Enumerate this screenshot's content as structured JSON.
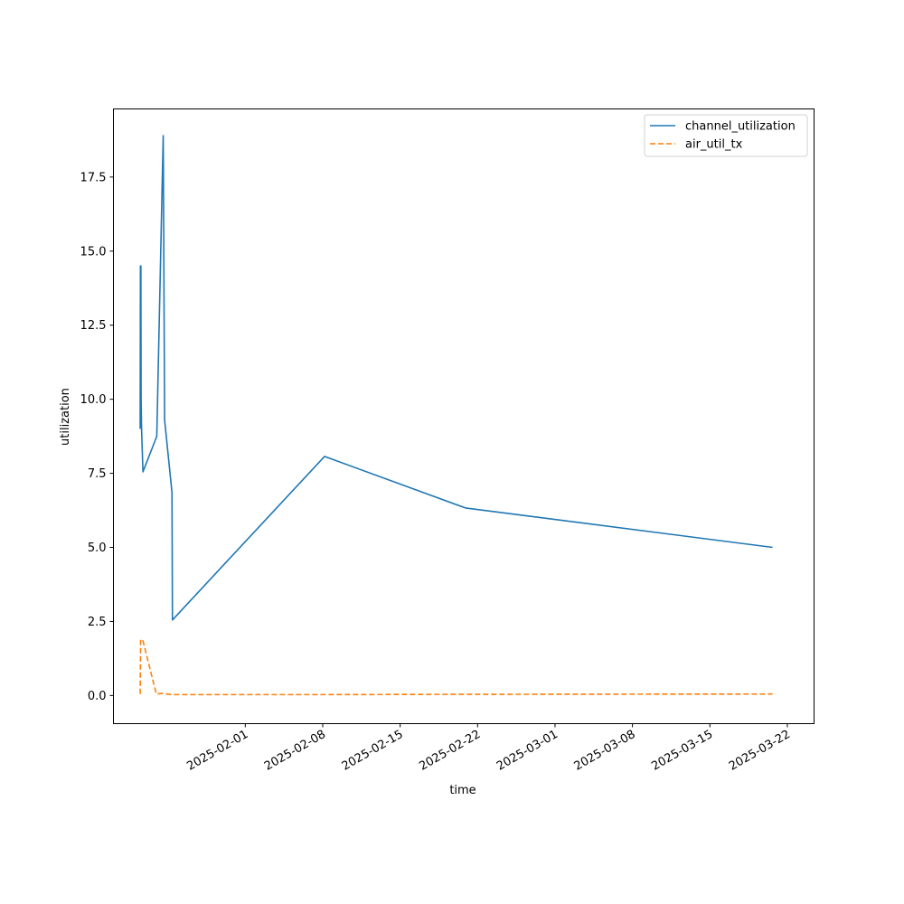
{
  "chart_data": {
    "type": "line",
    "title": "",
    "xlabel": "time",
    "ylabel": "utilization",
    "x_is_date": true,
    "xlim": [
      "2025-01-20T02:00",
      "2025-03-24T10:00"
    ],
    "ylim": [
      -0.95,
      19.8
    ],
    "x_ticks": [
      "2025-02-01",
      "2025-02-08",
      "2025-02-15",
      "2025-02-22",
      "2025-03-01",
      "2025-03-08",
      "2025-03-15",
      "2025-03-22"
    ],
    "y_ticks": [
      0.0,
      2.5,
      5.0,
      7.5,
      10.0,
      12.5,
      15.0,
      17.5
    ],
    "y_tick_labels": [
      "0.0",
      "2.5",
      "5.0",
      "7.5",
      "10.0",
      "12.5",
      "15.0",
      "17.5"
    ],
    "grid": false,
    "legend_position": "top-right",
    "series": [
      {
        "name": "channel_utilization",
        "color": "#1f77b4",
        "dash": "solid",
        "x": [
          "2025-01-22T12:00",
          "2025-01-22T12:30",
          "2025-01-22T13:00",
          "2025-01-22T13:30",
          "2025-01-22T14:00",
          "2025-01-22T15:00",
          "2025-01-22T18:00",
          "2025-01-24T00:00",
          "2025-01-24T14:00",
          "2025-01-24T17:00",
          "2025-01-25T09:00",
          "2025-01-25T10:00",
          "2025-02-08T04:00",
          "2025-02-20T22:00",
          "2025-03-20T16:00"
        ],
        "y": [
          9.0,
          14.5,
          9.1,
          14.5,
          10.0,
          9.0,
          7.55,
          8.75,
          18.9,
          9.3,
          6.85,
          2.55,
          8.07,
          6.33,
          5.0
        ]
      },
      {
        "name": "air_util_tx",
        "color": "#ff7f0e",
        "dash": "dashed",
        "x": [
          "2025-01-22T12:00",
          "2025-01-22T13:00",
          "2025-01-22T18:00",
          "2025-01-23T23:00",
          "2025-01-24T11:00",
          "2025-01-25T10:00",
          "2025-02-08T04:00",
          "2025-02-20T22:00",
          "2025-03-20T16:00"
        ],
        "y": [
          0.05,
          1.9,
          1.85,
          0.05,
          0.07,
          0.03,
          0.03,
          0.04,
          0.05
        ]
      }
    ]
  }
}
